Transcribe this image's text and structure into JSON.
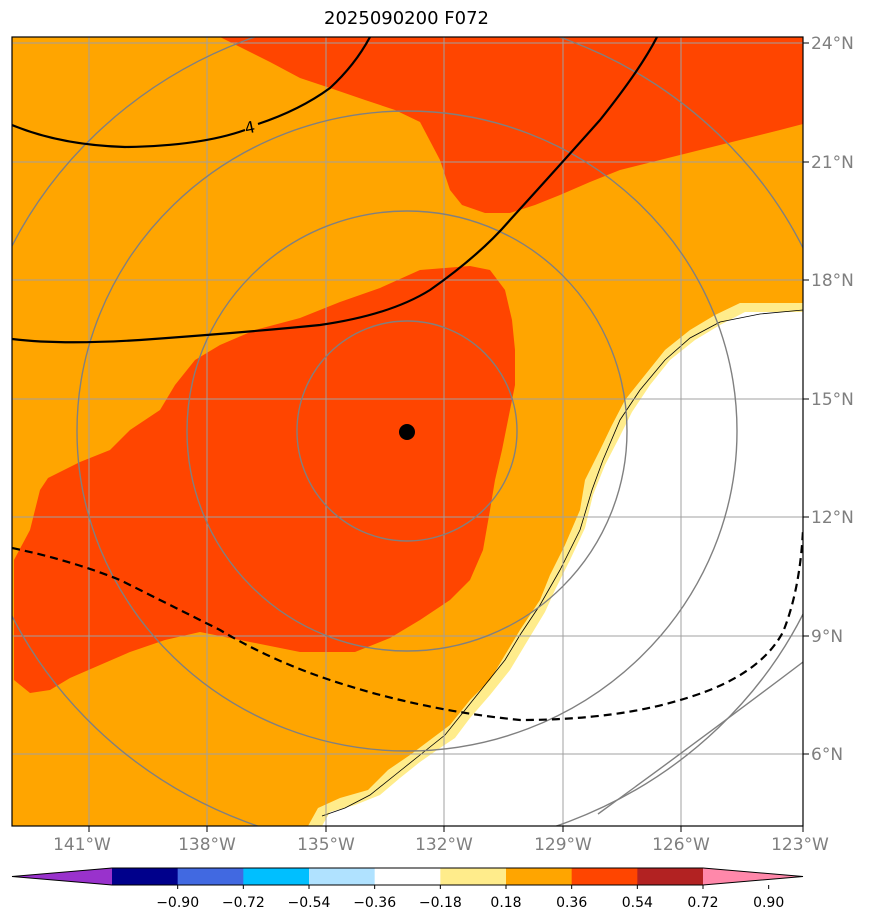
{
  "title": "2025090200 F072",
  "map": {
    "lon_range": [
      -143,
      -123
    ],
    "lat_range": [
      4.5,
      24.5
    ],
    "gridlines": true,
    "lon_ticks": [
      "141°W",
      "138°W",
      "135°W",
      "132°W",
      "129°W",
      "126°W",
      "123°W"
    ],
    "lat_ticks": [
      "24°N",
      "21°N",
      "18°N",
      "15°N",
      "12°N",
      "9°N",
      "6°N"
    ],
    "storm_center": {
      "lon": -133.0,
      "lat": 14.2
    },
    "contour_label": "4",
    "colors": {
      "fill_036_054": "#ffa500",
      "fill_054_072": "#ff4500",
      "fill_018_036": "#ffec8b",
      "fill_below": "#ffffff",
      "grid": "#a0a0a0",
      "range_rings": "#808080"
    }
  },
  "colorbar": {
    "labels": [
      "−0.90",
      "−0.72",
      "−0.54",
      "−0.36",
      "−0.18",
      "0.18",
      "0.36",
      "0.54",
      "0.72",
      "0.90"
    ],
    "colors": [
      "#9932cc",
      "#00008b",
      "#4169e1",
      "#00bfff",
      "#b0e2ff",
      "#ffffff",
      "#ffec8b",
      "#ffa500",
      "#ff4500",
      "#b22222",
      "#ff88aa"
    ]
  }
}
